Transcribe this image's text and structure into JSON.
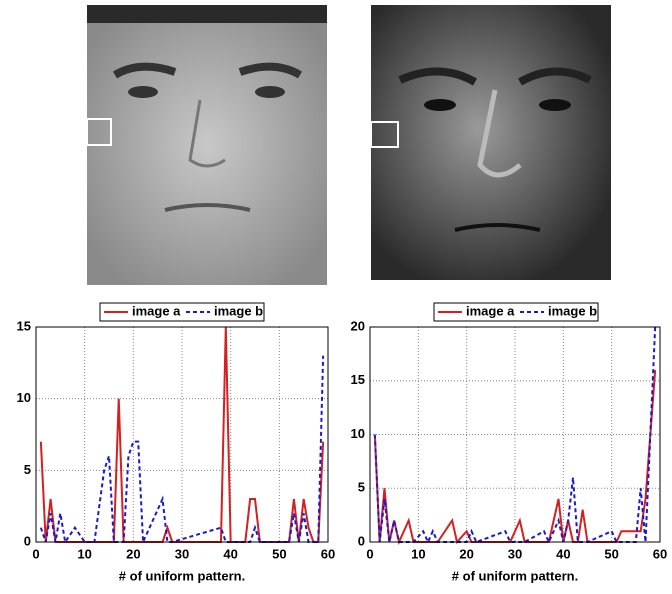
{
  "chart_data": [
    {
      "type": "line",
      "xlabel": "# of uniform pattern.",
      "xlim": [
        0,
        60
      ],
      "xticks": [
        0,
        10,
        20,
        30,
        40,
        50,
        60
      ],
      "ylim": [
        0,
        15
      ],
      "yticks": [
        0,
        5,
        10,
        15
      ],
      "grid": true,
      "x": [
        1,
        2,
        3,
        4,
        5,
        6,
        8,
        10,
        12,
        14,
        15,
        16,
        17,
        18,
        19,
        20,
        21,
        22,
        26,
        27,
        28,
        38,
        39,
        40,
        43,
        44,
        45,
        46,
        52,
        53,
        54,
        55,
        56,
        57,
        58,
        59
      ],
      "series": [
        {
          "name": "image a",
          "color": "#d42020",
          "dash": false,
          "values": [
            7,
            0,
            3,
            0,
            0,
            0,
            0,
            0,
            0,
            0,
            0,
            0,
            10,
            0,
            0,
            0,
            0,
            0,
            0,
            1,
            0,
            0,
            15,
            0,
            0,
            3,
            3,
            0,
            0,
            3,
            0,
            3,
            1,
            0,
            0,
            7
          ]
        },
        {
          "name": "image b",
          "color": "#1a1acc",
          "dash": true,
          "values": [
            1,
            0,
            2,
            0,
            2,
            0,
            1,
            0,
            0,
            5,
            6,
            0,
            0,
            0,
            6,
            7,
            7,
            0,
            3,
            0,
            0,
            1,
            0,
            0,
            0,
            0,
            1,
            0,
            0,
            2,
            0,
            2,
            0,
            0,
            0,
            13
          ]
        }
      ]
    },
    {
      "type": "line",
      "xlabel": "# of uniform pattern.",
      "xlim": [
        0,
        60
      ],
      "xticks": [
        0,
        10,
        20,
        30,
        40,
        50,
        60
      ],
      "ylim": [
        0,
        20
      ],
      "yticks": [
        0,
        5,
        10,
        15,
        20
      ],
      "grid": true,
      "x": [
        1,
        2,
        3,
        4,
        5,
        6,
        8,
        9,
        11,
        12,
        13,
        14,
        17,
        18,
        20,
        21,
        22,
        28,
        29,
        31,
        32,
        36,
        37,
        39,
        40,
        41,
        42,
        43,
        44,
        45,
        50,
        51,
        52,
        55,
        56,
        57,
        59
      ],
      "series": [
        {
          "name": "image a",
          "color": "#d42020",
          "dash": false,
          "values": [
            10,
            0,
            5,
            0,
            2,
            0,
            2,
            0,
            0,
            0,
            0,
            0,
            2,
            0,
            1,
            0,
            0,
            0,
            0,
            2,
            0,
            0,
            0,
            4,
            0,
            2,
            0,
            0,
            3,
            0,
            0,
            0,
            1,
            1,
            1,
            4,
            16
          ]
        },
        {
          "name": "image b",
          "color": "#1a1acc",
          "dash": true,
          "values": [
            10,
            0,
            4,
            0,
            2,
            0,
            0,
            0,
            1,
            0,
            1,
            0,
            0,
            0,
            0,
            1,
            0,
            1,
            0,
            0,
            0,
            1,
            0,
            2,
            0,
            2,
            6,
            0,
            0,
            0,
            1,
            0,
            0,
            0,
            5,
            0,
            20
          ]
        }
      ]
    }
  ]
}
